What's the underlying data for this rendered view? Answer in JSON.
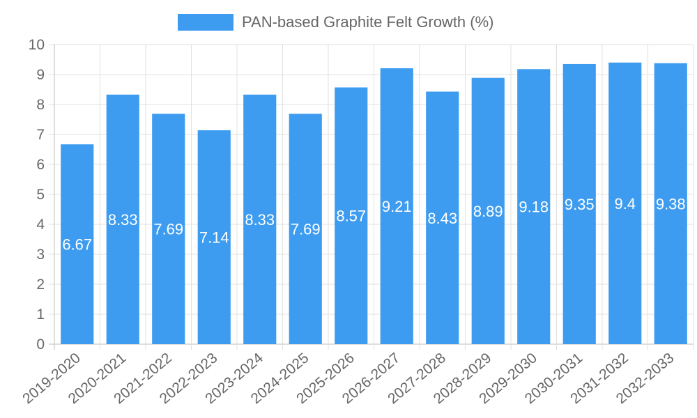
{
  "chart_data": {
    "type": "bar",
    "title": "",
    "xlabel": "",
    "ylabel": "",
    "legend": {
      "label": "PAN-based Graphite Felt Growth (%)",
      "placement": "top-center"
    },
    "categories": [
      "2019-2020",
      "2020-2021",
      "2021-2022",
      "2022-2023",
      "2023-2024",
      "2024-2025",
      "2025-2026",
      "2026-2027",
      "2027-2028",
      "2028-2029",
      "2029-2030",
      "2030-2031",
      "2031-2032",
      "2032-2033"
    ],
    "series": [
      {
        "name": "PAN-based Graphite Felt Growth (%)",
        "values": [
          6.67,
          8.33,
          7.69,
          7.14,
          8.33,
          7.69,
          8.57,
          9.21,
          8.43,
          8.89,
          9.18,
          9.35,
          9.4,
          9.38
        ]
      }
    ],
    "ylim": [
      0,
      10
    ],
    "yticks": [
      0,
      1,
      2,
      3,
      4,
      5,
      6,
      7,
      8,
      9,
      10
    ],
    "grid": true,
    "colors": {
      "bar": "#3d9cf0",
      "grid": "#e0e0e0",
      "text": "#666666",
      "label": "#ffffff"
    }
  }
}
